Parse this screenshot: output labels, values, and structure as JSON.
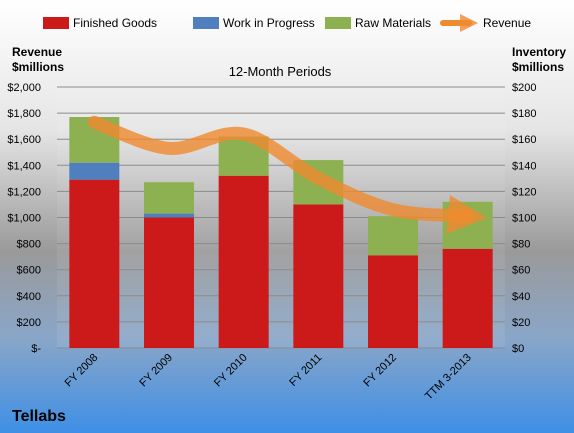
{
  "chart_data": {
    "type": "bar",
    "subtitle": "12-Month Periods",
    "company": "Tellabs",
    "categories": [
      "FY 2008",
      "FY 2009",
      "FY 2010",
      "FY 2011",
      "FY 2012",
      "TTM 3-2013"
    ],
    "y_left": {
      "label_line1": "Revenue",
      "label_line2": "$millions",
      "range": [
        0,
        2000
      ],
      "ticks": [
        0,
        200,
        400,
        600,
        800,
        1000,
        1200,
        1400,
        1600,
        1800,
        2000
      ],
      "tick_labels": [
        "$-",
        "$200",
        "$400",
        "$600",
        "$800",
        "$1,000",
        "$1,200",
        "$1,400",
        "$1,600",
        "$1,800",
        "$2,000"
      ]
    },
    "y_right": {
      "label_line1": "Inventory",
      "label_line2": "$millions",
      "range": [
        0,
        200
      ],
      "ticks": [
        0,
        20,
        40,
        60,
        80,
        100,
        120,
        140,
        160,
        180,
        200
      ],
      "tick_labels": [
        "$0",
        "$20",
        "$40",
        "$60",
        "$80",
        "$100",
        "$120",
        "$140",
        "$160",
        "$180",
        "$200"
      ]
    },
    "series": [
      {
        "name": "Finished Goods",
        "axis": "right",
        "color": "#cc1a1a",
        "values": [
          129,
          100,
          132,
          110,
          71,
          76
        ]
      },
      {
        "name": "Work in Progress",
        "axis": "right",
        "color": "#4f7fbf",
        "values": [
          13,
          3,
          0,
          0,
          0,
          0
        ]
      },
      {
        "name": "Raw Materials",
        "axis": "right",
        "color": "#8db050",
        "values": [
          35,
          24,
          30,
          34,
          30,
          36
        ]
      },
      {
        "name": "Revenue",
        "axis": "left",
        "type": "line",
        "color": "#f08a30",
        "values": [
          1730,
          1530,
          1640,
          1300,
          1060,
          1010
        ]
      }
    ],
    "legend_position": "top",
    "grid": true
  }
}
